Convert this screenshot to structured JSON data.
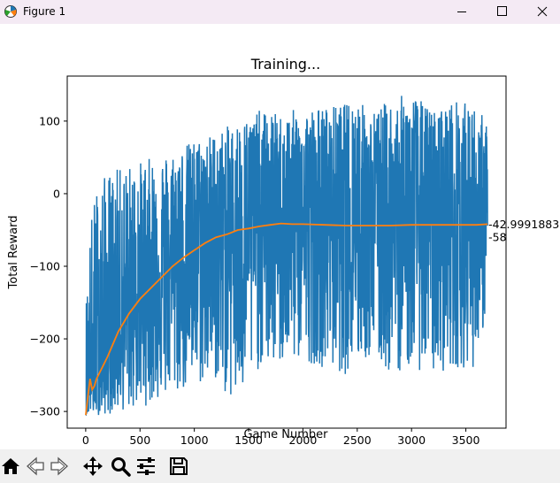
{
  "window": {
    "title": "Figure 1"
  },
  "icons": {
    "app": "figure-icon",
    "minimize": "minimize-icon",
    "maximize": "maximize-icon",
    "close": "close-icon",
    "home": "home-icon",
    "back": "back-arrow-icon",
    "forward": "forward-arrow-icon",
    "pan": "move-icon",
    "zoom": "magnifier-icon",
    "configure": "sliders-icon",
    "save": "floppy-disk-icon"
  },
  "colors": {
    "series_raw": "#1f77b4",
    "series_mean": "#ff7f0e"
  },
  "chart_data": {
    "type": "line",
    "title": "Training...",
    "xlabel": "Game Number",
    "ylabel": "Total Reward",
    "xlim": [
      -170,
      3870
    ],
    "ylim": [
      -323,
      162
    ],
    "xticks": [
      0,
      500,
      1000,
      1500,
      2000,
      2500,
      3000,
      3500
    ],
    "yticks": [
      -300,
      -200,
      -100,
      0,
      100
    ],
    "grid": false,
    "series": [
      {
        "values_note": "per-game total reward, 3700 games, highly noisy",
        "envelope": {
          "x": [
            0,
            50,
            100,
            200,
            300,
            400,
            500,
            600,
            800,
            1000,
            1200,
            1400,
            1600,
            1800,
            2000,
            2200,
            2400,
            2500,
            2600,
            2800,
            3000,
            3200,
            3400,
            3600,
            3700
          ],
          "high": [
            -150,
            -30,
            10,
            30,
            35,
            40,
            45,
            50,
            60,
            75,
            85,
            100,
            115,
            110,
            120,
            120,
            125,
            140,
            110,
            130,
            140,
            115,
            130,
            120,
            100
          ],
          "low": [
            -305,
            -305,
            -305,
            -305,
            -300,
            -300,
            -295,
            -290,
            -280,
            -270,
            -260,
            -300,
            -240,
            -240,
            -230,
            -240,
            -250,
            -240,
            -230,
            -250,
            -240,
            -250,
            -240,
            -240,
            -150
          ]
        }
      },
      {
        "values_note": "running mean reward",
        "x": [
          0,
          20,
          40,
          60,
          80,
          100,
          150,
          200,
          300,
          400,
          500,
          600,
          700,
          800,
          900,
          1000,
          1100,
          1200,
          1300,
          1400,
          1500,
          1600,
          1700,
          1800,
          1900,
          2000,
          2200,
          2400,
          2600,
          2800,
          3000,
          3200,
          3400,
          3600,
          3700
        ],
        "y": [
          -305,
          -280,
          -255,
          -270,
          -265,
          -255,
          -240,
          -225,
          -190,
          -165,
          -145,
          -130,
          -115,
          -100,
          -88,
          -78,
          -68,
          -60,
          -56,
          -50,
          -48,
          -45,
          -43,
          -41,
          -42,
          -42,
          -43,
          -44,
          -44,
          -44,
          -43,
          -43,
          -43,
          -43,
          -42
        ]
      }
    ],
    "annotations": [
      {
        "text": "-42.9991883",
        "y": -43
      },
      {
        "text": "-58",
        "y": -58
      }
    ]
  }
}
